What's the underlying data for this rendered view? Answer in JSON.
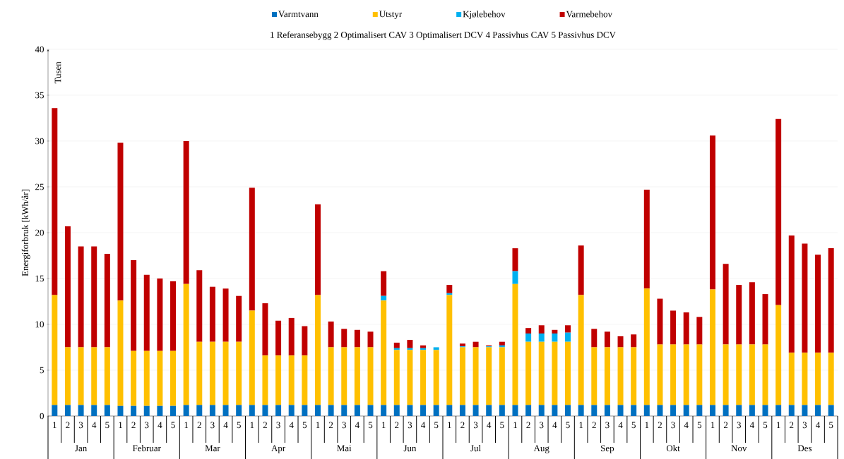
{
  "chart_data": {
    "type": "bar",
    "stacked": true,
    "subtitle": "1 Referansebygg   2 Optimalisert CAV   3 Optimalisert DCV   4 Passivhus CAV   5 Passivhus DCV",
    "ylabel": "Energiforbruk [kWh/år]",
    "annotations": [
      "Tusen",
      "Jan",
      "Februar",
      "Mar",
      "Apr",
      "Mai",
      "Jun",
      "Jul",
      "Aug",
      "Sep",
      "Okt",
      "Nov",
      "Des"
    ],
    "categories": [
      "1",
      "2",
      "3",
      "4",
      "5",
      "1",
      "2",
      "3",
      "4",
      "5",
      "1",
      "2",
      "3",
      "4",
      "5",
      "1",
      "2",
      "3",
      "4",
      "5",
      "1",
      "2",
      "3",
      "4",
      "5",
      "1",
      "2",
      "3",
      "4",
      "5",
      "1",
      "2",
      "3",
      "4",
      "5",
      "1",
      "2",
      "3",
      "4",
      "5",
      "1",
      "2",
      "3",
      "4",
      "5",
      "1",
      "2",
      "3",
      "4",
      "5",
      "1",
      "2",
      "3",
      "4",
      "5",
      "1",
      "2",
      "3",
      "4",
      "5"
    ],
    "series": [
      {
        "name": "Varmtvann",
        "color": "#0070c0",
        "values": [
          1.2,
          1.2,
          1.2,
          1.2,
          1.2,
          1.1,
          1.1,
          1.1,
          1.1,
          1.1,
          1.2,
          1.2,
          1.2,
          1.2,
          1.2,
          1.2,
          1.2,
          1.2,
          1.2,
          1.2,
          1.2,
          1.2,
          1.2,
          1.2,
          1.2,
          1.2,
          1.2,
          1.2,
          1.2,
          1.2,
          1.2,
          1.2,
          1.2,
          1.2,
          1.2,
          1.2,
          1.2,
          1.2,
          1.2,
          1.2,
          1.2,
          1.2,
          1.2,
          1.2,
          1.2,
          1.2,
          1.2,
          1.2,
          1.2,
          1.2,
          1.2,
          1.2,
          1.2,
          1.2,
          1.2,
          1.2,
          1.2,
          1.2,
          1.2,
          1.2
        ]
      },
      {
        "name": "Utstyr",
        "color": "#ffc000",
        "values": [
          12.0,
          6.3,
          6.3,
          6.3,
          6.3,
          11.5,
          6.0,
          6.0,
          6.0,
          6.0,
          13.2,
          6.9,
          6.9,
          6.9,
          6.9,
          10.3,
          5.4,
          5.4,
          5.4,
          5.4,
          12.0,
          6.3,
          6.3,
          6.3,
          6.3,
          11.4,
          6.0,
          6.0,
          6.0,
          6.0,
          12.0,
          6.3,
          6.3,
          6.3,
          6.3,
          13.2,
          6.9,
          6.9,
          6.9,
          6.9,
          12.0,
          6.3,
          6.3,
          6.3,
          6.3,
          12.7,
          6.6,
          6.6,
          6.6,
          6.6,
          12.6,
          6.6,
          6.6,
          6.6,
          6.6,
          10.9,
          5.7,
          5.7,
          5.7,
          5.7
        ]
      },
      {
        "name": "Kjølebehov",
        "color": "#00b0f0",
        "values": [
          0,
          0,
          0,
          0,
          0,
          0,
          0,
          0,
          0,
          0,
          0,
          0,
          0,
          0,
          0,
          0,
          0,
          0,
          0,
          0,
          0,
          0,
          0,
          0,
          0,
          0.5,
          0.2,
          0.2,
          0.2,
          0.3,
          0.2,
          0.1,
          0,
          0.1,
          0.2,
          1.4,
          0.9,
          0.9,
          0.9,
          1.0,
          0,
          0,
          0,
          0,
          0,
          0,
          0,
          0,
          0,
          0,
          0,
          0,
          0,
          0,
          0,
          0,
          0,
          0,
          0,
          0
        ]
      },
      {
        "name": "Varmebehov",
        "color": "#c00000",
        "values": [
          20.4,
          13.2,
          11.0,
          11.0,
          10.2,
          17.2,
          9.9,
          8.3,
          7.9,
          7.6,
          15.6,
          7.8,
          6.0,
          5.8,
          5.0,
          13.4,
          5.7,
          3.8,
          4.1,
          3.2,
          9.9,
          2.8,
          2.0,
          1.9,
          1.7,
          2.7,
          0.6,
          0.9,
          0.3,
          0,
          0.9,
          0.3,
          0.6,
          0.1,
          0.4,
          2.5,
          0.6,
          0.9,
          0.4,
          0.8,
          5.4,
          2.0,
          1.7,
          1.2,
          1.4,
          10.8,
          5.0,
          3.7,
          3.5,
          3.0,
          16.8,
          8.8,
          6.5,
          6.8,
          5.5,
          20.3,
          12.8,
          11.9,
          10.7,
          11.4
        ]
      }
    ],
    "ylim": [
      0,
      40
    ],
    "yticks": [
      0,
      5,
      10,
      15,
      20,
      25,
      30,
      35,
      40
    ],
    "grid": "y",
    "legend": "top"
  }
}
